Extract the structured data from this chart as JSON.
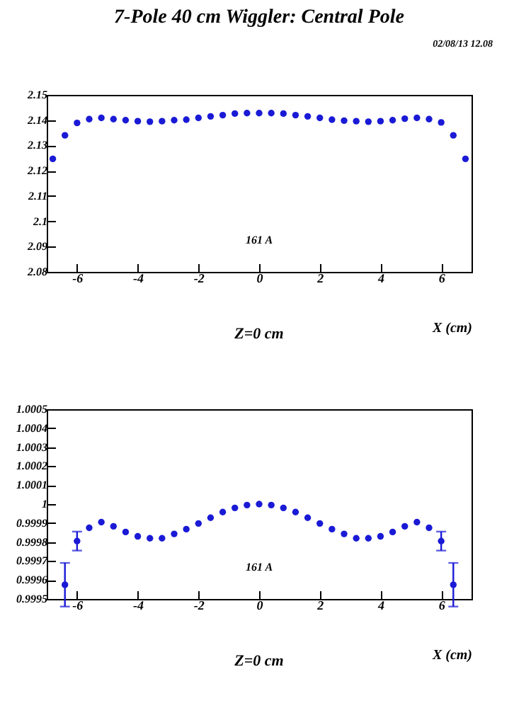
{
  "chart_data": [
    {
      "type": "scatter",
      "title": "7-Pole 40 cm Wiggler: Central Pole",
      "xlabel": "X (cm)",
      "annotations": [
        "161 A",
        "Z=0 cm",
        "02/08/13  12.08"
      ],
      "x": [
        -6.8,
        -6.4,
        -6.0,
        -5.6,
        -5.2,
        -4.8,
        -4.4,
        -4.0,
        -3.6,
        -3.2,
        -2.8,
        -2.4,
        -2.0,
        -1.6,
        -1.2,
        -0.8,
        -0.4,
        0,
        0.4,
        0.8,
        1.2,
        1.6,
        2.0,
        2.4,
        2.8,
        3.2,
        3.6,
        4.0,
        4.4,
        4.8,
        5.2,
        5.6,
        6.0,
        6.4,
        6.8
      ],
      "series": [
        {
          "color": "#1a1ad6",
          "values": [
            2.1247,
            2.134,
            2.1389,
            2.1404,
            2.1409,
            2.1404,
            2.14,
            2.1396,
            2.1394,
            2.1396,
            2.14,
            2.1402,
            2.1409,
            2.1415,
            2.142,
            2.1426,
            2.1428,
            2.1428,
            2.1428,
            2.1426,
            2.142,
            2.1415,
            2.1409,
            2.1402,
            2.1398,
            2.1396,
            2.1394,
            2.1396,
            2.14,
            2.1406,
            2.1409,
            2.1404,
            2.1391,
            2.134,
            2.1247
          ]
        }
      ],
      "marker": "circle",
      "grid": false,
      "xlim": [
        -7,
        7
      ],
      "xticks": [
        -6,
        -4,
        -2,
        0,
        2,
        4,
        6
      ],
      "ylim": [
        2.08,
        2.15
      ],
      "yticks": [
        2.08,
        2.09,
        2.1,
        2.11,
        2.12,
        2.13,
        2.14,
        2.15
      ]
    },
    {
      "type": "scatter",
      "xlabel": "X (cm)",
      "annotations": [
        "161 A",
        "Z=0 cm"
      ],
      "x": [
        -6.4,
        -6.0,
        -5.6,
        -5.2,
        -4.8,
        -4.4,
        -4.0,
        -3.6,
        -3.2,
        -2.8,
        -2.4,
        -2.0,
        -1.6,
        -1.2,
        -0.8,
        -0.4,
        0,
        0.4,
        0.8,
        1.2,
        1.6,
        2.0,
        2.4,
        2.8,
        3.2,
        3.6,
        4.0,
        4.4,
        4.8,
        5.2,
        5.6,
        6.0,
        6.4
      ],
      "series": [
        {
          "color": "#1a1ad6",
          "values": [
            0.999575,
            0.999805,
            0.999875,
            0.999905,
            0.999883,
            0.999853,
            0.99983,
            0.99982,
            0.99982,
            0.999843,
            0.999868,
            0.999898,
            0.999928,
            0.999958,
            0.99998,
            0.999995,
            1.0,
            0.999995,
            0.99998,
            0.999958,
            0.999928,
            0.999898,
            0.999868,
            0.999843,
            0.99982,
            0.99982,
            0.99983,
            0.999853,
            0.999883,
            0.999905,
            0.999875,
            0.999805,
            0.999575
          ],
          "errors": [
            0.000115,
            5e-05,
            null,
            null,
            null,
            null,
            null,
            null,
            null,
            null,
            null,
            null,
            null,
            null,
            null,
            null,
            null,
            null,
            null,
            null,
            null,
            null,
            null,
            null,
            null,
            null,
            null,
            null,
            null,
            null,
            null,
            5e-05,
            0.000115
          ]
        }
      ],
      "marker": "circle",
      "grid": false,
      "xlim": [
        -7,
        7
      ],
      "xticks": [
        -6,
        -4,
        -2,
        0,
        2,
        4,
        6
      ],
      "ylim": [
        0.9995,
        1.0005
      ],
      "yticks": [
        0.9995,
        0.9996,
        0.9997,
        0.9998,
        0.9999,
        1,
        1.0001,
        1.0002,
        1.0003,
        1.0004,
        1.0005
      ]
    }
  ]
}
